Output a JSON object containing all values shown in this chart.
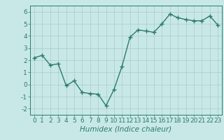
{
  "x": [
    0,
    1,
    2,
    3,
    4,
    5,
    6,
    7,
    8,
    9,
    10,
    11,
    12,
    13,
    14,
    15,
    16,
    17,
    18,
    19,
    20,
    21,
    22,
    23
  ],
  "y": [
    2.2,
    2.4,
    1.6,
    1.7,
    -0.1,
    0.3,
    -0.65,
    -0.75,
    -0.8,
    -1.75,
    -0.4,
    1.5,
    3.9,
    4.5,
    4.4,
    4.3,
    5.0,
    5.8,
    5.5,
    5.35,
    5.25,
    5.25,
    5.65,
    4.9
  ],
  "line_color": "#2d7a6e",
  "marker": "+",
  "markersize": 4,
  "linewidth": 1.0,
  "bg_color": "#c8e8e8",
  "grid_color": "#b0d0d0",
  "xlabel": "Humidex (Indice chaleur)",
  "xlabel_fontsize": 7.5,
  "tick_fontsize": 6.5,
  "ylim": [
    -2.5,
    6.5
  ],
  "xlim": [
    -0.5,
    23.5
  ],
  "yticks": [
    -2,
    -1,
    0,
    1,
    2,
    3,
    4,
    5,
    6
  ],
  "xticks": [
    0,
    1,
    2,
    3,
    4,
    5,
    6,
    7,
    8,
    9,
    10,
    11,
    12,
    13,
    14,
    15,
    16,
    17,
    18,
    19,
    20,
    21,
    22,
    23
  ]
}
